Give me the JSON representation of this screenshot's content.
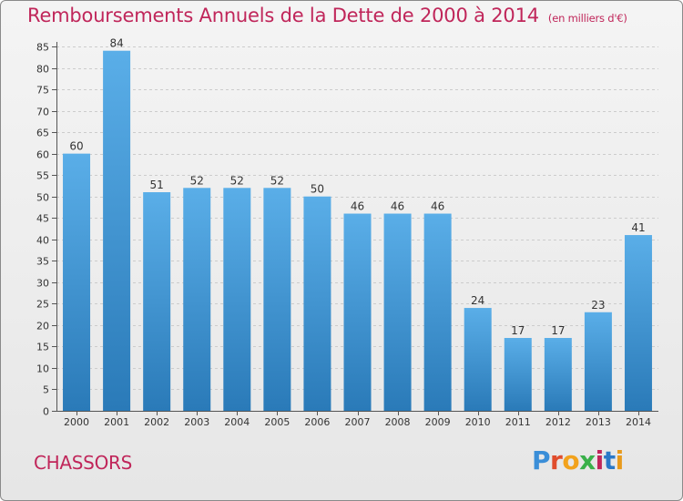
{
  "header": {
    "title": "Remboursements Annuels de la Dette de 2000 à 2014",
    "subtitle": "(en milliers d'€)"
  },
  "footer": {
    "commune": "CHASSORS",
    "logo_text": "Proxiti",
    "logo_colors": [
      "#3a8ed8",
      "#e04c2c",
      "#f2a21c",
      "#3ab04a",
      "#c0265a",
      "#2a78c8",
      "#e89a1c"
    ]
  },
  "colors": {
    "bar_top": "#5aaee8",
    "bar_bottom": "#2a7ab8",
    "grid": "#cccccc",
    "title": "#c0265a"
  },
  "chart_data": {
    "type": "bar",
    "title": "Remboursements Annuels de la Dette de 2000 à 2014",
    "xlabel": "",
    "ylabel": "en milliers d'€",
    "categories": [
      "2000",
      "2001",
      "2002",
      "2003",
      "2004",
      "2005",
      "2006",
      "2007",
      "2008",
      "2009",
      "2010",
      "2011",
      "2012",
      "2013",
      "2014"
    ],
    "values": [
      60,
      84,
      51,
      52,
      52,
      52,
      50,
      46,
      46,
      46,
      24,
      17,
      17,
      23,
      41
    ],
    "ylim": [
      0,
      85
    ],
    "yticks": [
      0,
      5,
      10,
      15,
      20,
      25,
      30,
      35,
      40,
      45,
      50,
      55,
      60,
      65,
      70,
      75,
      80,
      85
    ],
    "grid": true
  }
}
